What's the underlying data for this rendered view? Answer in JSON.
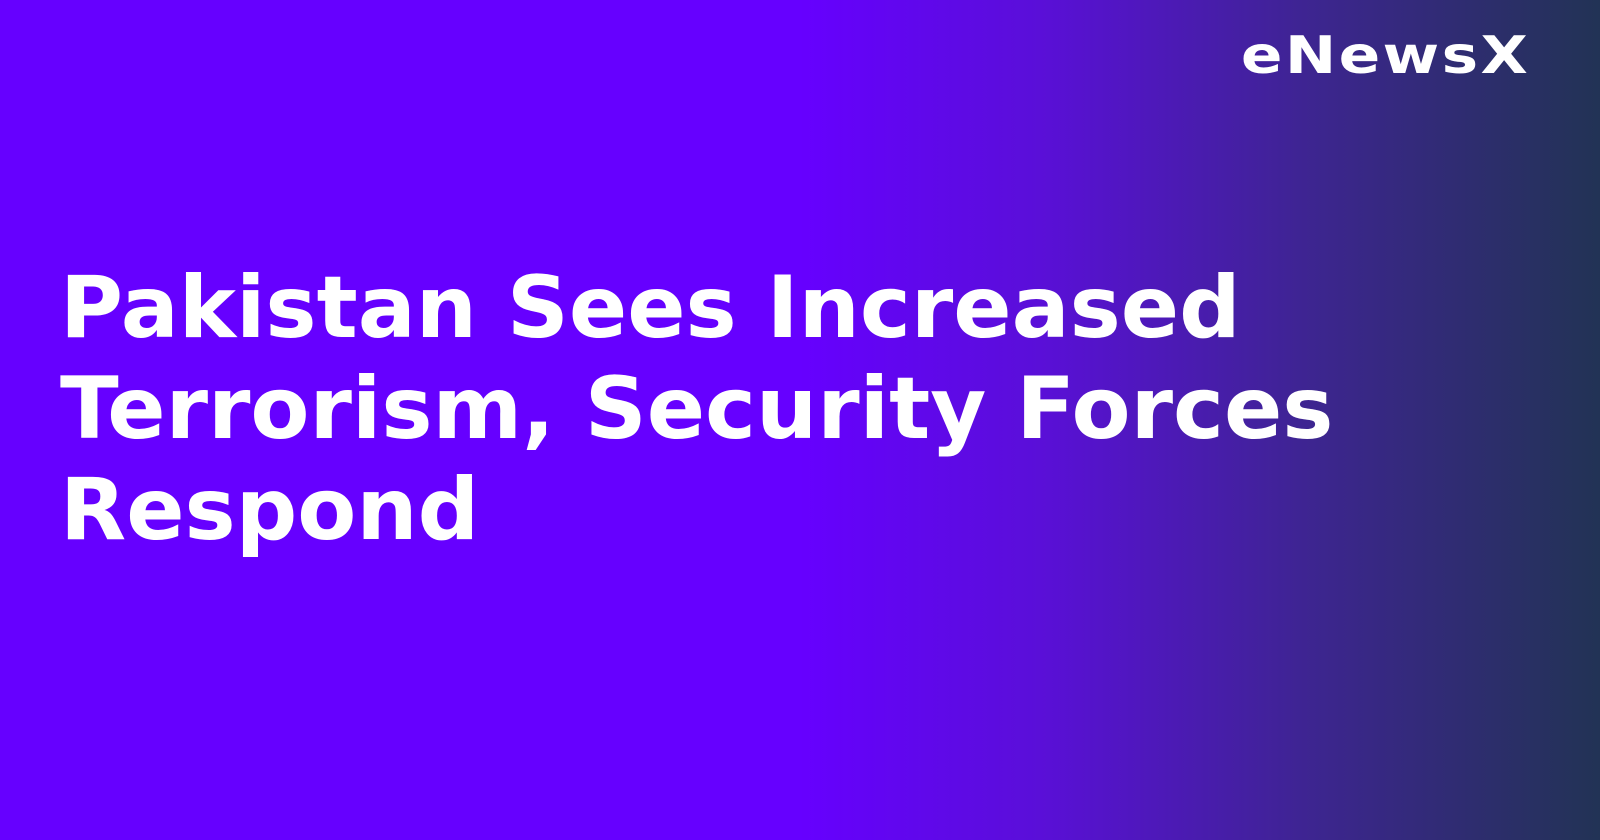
{
  "brand": {
    "logo_text": "eNewsX"
  },
  "article": {
    "title": "Pakistan Sees Increased Terrorism, Security Forces Respond"
  },
  "colors": {
    "background_start": "#6600ff",
    "background_end": "#223355",
    "text": "#ffffff"
  }
}
